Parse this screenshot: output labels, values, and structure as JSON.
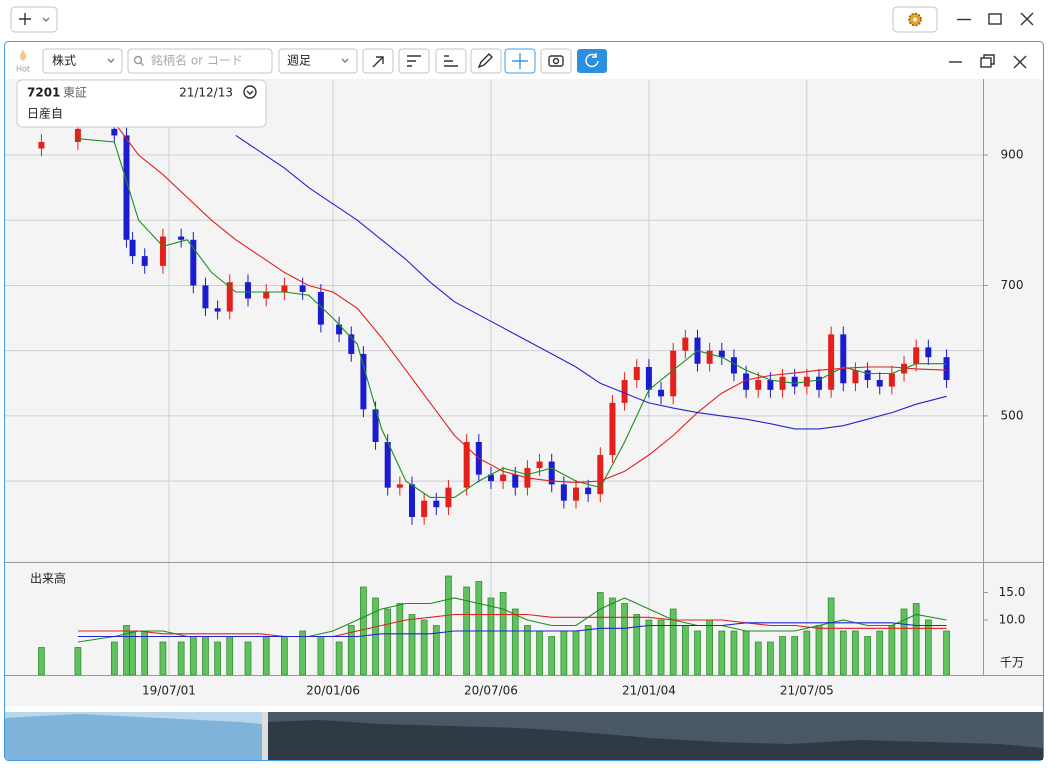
{
  "toolbar": {
    "hot": "Hot",
    "market_type": "株式",
    "search_placeholder": "銘柄名 or コード",
    "period": "週足"
  },
  "info": {
    "code": "7201",
    "exchange": "東証",
    "date": "21/12/13",
    "name": "日産自"
  },
  "chart_data": [
    {
      "type": "candlestick",
      "x": [
        "19/02/04",
        "19/03/18",
        "19/04/29",
        "19/05/13",
        "19/05/20",
        "19/06/03",
        "19/06/24",
        "19/07/15",
        "19/07/29",
        "19/08/12",
        "19/08/26",
        "19/09/09",
        "19/09/30",
        "19/10/21",
        "19/11/11",
        "19/12/02",
        "19/12/23",
        "20/01/13",
        "20/01/27",
        "20/02/10",
        "20/02/24",
        "20/03/09",
        "20/03/23",
        "20/04/06",
        "20/04/20",
        "20/05/04",
        "20/05/18",
        "20/06/08",
        "20/06/22",
        "20/07/06",
        "20/07/20",
        "20/08/03",
        "20/08/17",
        "20/08/31",
        "20/09/14",
        "20/09/28",
        "20/10/12",
        "20/10/26",
        "20/11/09",
        "20/11/23",
        "20/12/07",
        "20/12/21",
        "21/01/04",
        "21/01/18",
        "21/02/01",
        "21/02/15",
        "21/03/01",
        "21/03/15",
        "21/03/29",
        "21/04/12",
        "21/04/26",
        "21/05/10",
        "21/05/24",
        "21/06/07",
        "21/06/21",
        "21/07/05",
        "21/07/19",
        "21/08/02",
        "21/08/16",
        "21/08/30",
        "21/09/13",
        "21/09/27",
        "21/10/11",
        "21/10/25",
        "21/11/08",
        "21/11/22",
        "21/12/13"
      ],
      "open": [
        910,
        920,
        940,
        930,
        770,
        745,
        730,
        775,
        770,
        700,
        665,
        660,
        705,
        680,
        690,
        700,
        690,
        640,
        625,
        595,
        510,
        460,
        390,
        395,
        345,
        370,
        360,
        390,
        460,
        410,
        400,
        410,
        390,
        420,
        430,
        395,
        370,
        390,
        380,
        440,
        520,
        555,
        575,
        540,
        530,
        600,
        620,
        580,
        600,
        590,
        565,
        540,
        555,
        540,
        560,
        545,
        560,
        540,
        625,
        550,
        570,
        555,
        545,
        565,
        580,
        605,
        590
      ],
      "high": [
        932,
        952,
        952,
        942,
        782,
        757,
        787,
        787,
        782,
        712,
        677,
        717,
        717,
        702,
        712,
        712,
        702,
        652,
        637,
        607,
        522,
        472,
        407,
        407,
        382,
        382,
        402,
        472,
        472,
        422,
        422,
        422,
        432,
        442,
        442,
        407,
        402,
        402,
        452,
        532,
        567,
        587,
        587,
        552,
        612,
        632,
        632,
        612,
        612,
        602,
        577,
        567,
        567,
        572,
        572,
        572,
        572,
        637,
        637,
        582,
        582,
        567,
        577,
        592,
        617,
        617,
        602
      ],
      "low": [
        898,
        908,
        918,
        758,
        733,
        718,
        718,
        758,
        688,
        653,
        648,
        648,
        668,
        668,
        678,
        678,
        628,
        613,
        583,
        498,
        448,
        378,
        378,
        333,
        333,
        348,
        348,
        378,
        398,
        388,
        388,
        378,
        378,
        408,
        383,
        358,
        358,
        368,
        368,
        428,
        508,
        543,
        528,
        518,
        518,
        588,
        568,
        568,
        578,
        553,
        528,
        528,
        528,
        528,
        533,
        533,
        528,
        528,
        538,
        538,
        543,
        533,
        533,
        553,
        568,
        578,
        543
      ],
      "close": [
        920,
        940,
        930,
        770,
        745,
        730,
        775,
        770,
        700,
        665,
        660,
        705,
        680,
        690,
        700,
        690,
        640,
        625,
        595,
        510,
        460,
        390,
        395,
        345,
        370,
        360,
        390,
        460,
        410,
        400,
        410,
        390,
        420,
        430,
        395,
        370,
        390,
        380,
        440,
        520,
        555,
        575,
        540,
        530,
        600,
        620,
        580,
        600,
        590,
        565,
        540,
        555,
        540,
        560,
        545,
        560,
        540,
        625,
        550,
        570,
        555,
        545,
        565,
        580,
        605,
        590,
        555
      ],
      "up_color": "#e3201c",
      "down_color": "#1b1bd0",
      "ma_x": [
        "19/03/18",
        "19/04/29",
        "19/05/27",
        "19/06/24",
        "19/07/22",
        "19/08/19",
        "19/09/16",
        "19/10/14",
        "19/11/11",
        "19/12/09",
        "20/01/06",
        "20/02/03",
        "20/03/02",
        "20/03/30",
        "20/04/27",
        "20/05/25",
        "20/06/22",
        "20/07/20",
        "20/08/17",
        "20/09/14",
        "20/10/12",
        "20/11/09",
        "20/12/07",
        "21/01/04",
        "21/02/01",
        "21/03/01",
        "21/03/29",
        "21/04/26",
        "21/05/24",
        "21/06/21",
        "21/07/19",
        "21/08/16",
        "21/09/13",
        "21/10/11",
        "21/11/08",
        "21/12/13"
      ],
      "ma_series": [
        {
          "color": "#1c8f1c",
          "values": [
            925,
            920,
            800,
            760,
            770,
            720,
            690,
            690,
            690,
            685,
            650,
            610,
            480,
            400,
            375,
            375,
            400,
            420,
            410,
            420,
            400,
            390,
            460,
            540,
            570,
            600,
            590,
            570,
            555,
            550,
            555,
            575,
            565,
            565,
            580,
            580
          ]
        },
        {
          "color": "#e02020",
          "values": [
            null,
            950,
            900,
            870,
            835,
            800,
            770,
            745,
            720,
            700,
            690,
            665,
            620,
            570,
            520,
            470,
            435,
            415,
            405,
            400,
            398,
            400,
            415,
            440,
            470,
            505,
            535,
            555,
            562,
            566,
            570,
            573,
            575,
            575,
            572,
            570
          ]
        },
        {
          "color": "#2424d0",
          "values": [
            null,
            null,
            null,
            null,
            null,
            null,
            930,
            905,
            880,
            850,
            825,
            800,
            770,
            740,
            705,
            675,
            655,
            635,
            615,
            595,
            575,
            550,
            535,
            520,
            512,
            505,
            500,
            495,
            488,
            480,
            480,
            485,
            495,
            505,
            518,
            530
          ]
        }
      ],
      "xlim": [
        "18/12/24",
        "22/01/24"
      ],
      "xticks": [
        "19/07/01",
        "20/01/06",
        "20/07/06",
        "21/01/04",
        "21/07/05"
      ],
      "ylim": [
        276,
        1015
      ],
      "yticks": [
        500,
        700,
        900
      ],
      "ygrid": [
        400,
        500,
        600,
        700,
        800,
        900
      ],
      "grid": true
    },
    {
      "type": "bar",
      "title": "出来高",
      "unit": "千万",
      "x": [
        "19/02/04",
        "19/03/18",
        "19/04/29",
        "19/05/13",
        "19/05/20",
        "19/06/03",
        "19/06/24",
        "19/07/15",
        "19/07/29",
        "19/08/12",
        "19/08/26",
        "19/09/09",
        "19/09/30",
        "19/10/21",
        "19/11/11",
        "19/12/02",
        "19/12/23",
        "20/01/13",
        "20/01/27",
        "20/02/10",
        "20/02/24",
        "20/03/09",
        "20/03/23",
        "20/04/06",
        "20/04/20",
        "20/05/04",
        "20/05/18",
        "20/06/08",
        "20/06/22",
        "20/07/06",
        "20/07/20",
        "20/08/03",
        "20/08/17",
        "20/08/31",
        "20/09/14",
        "20/09/28",
        "20/10/12",
        "20/10/26",
        "20/11/09",
        "20/11/23",
        "20/12/07",
        "20/12/21",
        "21/01/04",
        "21/01/18",
        "21/02/01",
        "21/02/15",
        "21/03/01",
        "21/03/15",
        "21/03/29",
        "21/04/12",
        "21/04/26",
        "21/05/10",
        "21/05/24",
        "21/06/07",
        "21/06/21",
        "21/07/05",
        "21/07/19",
        "21/08/02",
        "21/08/16",
        "21/08/30",
        "21/09/13",
        "21/09/27",
        "21/10/11",
        "21/10/25",
        "21/11/08",
        "21/11/22",
        "21/12/13"
      ],
      "values": [
        5,
        5,
        6,
        9,
        8,
        8,
        6,
        6,
        7,
        7,
        6,
        7,
        6,
        7,
        7,
        8,
        7,
        6,
        9,
        16,
        14,
        12,
        13,
        11,
        10,
        9,
        18,
        16,
        17,
        14,
        15,
        12,
        9,
        8,
        7,
        8,
        8,
        9,
        15,
        14,
        13,
        11,
        10,
        10,
        12,
        9,
        8,
        10,
        8,
        8,
        8,
        6,
        6,
        7,
        7,
        8,
        9,
        14,
        8,
        8,
        7,
        8,
        9,
        12,
        13,
        10,
        8
      ],
      "color": "#5fc25f",
      "edge_color": "#2a852a",
      "ma_x": [
        "19/03/18",
        "19/04/29",
        "19/05/27",
        "19/06/24",
        "19/07/22",
        "19/08/19",
        "19/09/16",
        "19/10/14",
        "19/11/11",
        "19/12/09",
        "20/01/06",
        "20/02/03",
        "20/03/02",
        "20/03/30",
        "20/04/27",
        "20/05/25",
        "20/06/22",
        "20/07/20",
        "20/08/17",
        "20/09/14",
        "20/10/12",
        "20/11/09",
        "20/12/07",
        "21/01/04",
        "21/02/01",
        "21/03/01",
        "21/03/29",
        "21/04/26",
        "21/05/24",
        "21/06/21",
        "21/07/19",
        "21/08/16",
        "21/09/13",
        "21/10/11",
        "21/11/08",
        "21/12/13"
      ],
      "ma_series": [
        {
          "color": "#1c8f1c",
          "values": [
            6,
            7,
            8,
            8,
            7,
            7,
            7,
            7,
            7,
            7,
            8,
            10,
            12,
            13,
            13,
            14,
            13,
            12,
            10,
            9,
            9,
            12,
            14,
            12,
            10,
            9,
            9,
            8,
            8,
            8,
            9,
            10,
            9,
            9,
            11,
            10
          ]
        },
        {
          "color": "#e02020",
          "values": [
            8,
            8,
            8,
            7.5,
            7.5,
            7.5,
            7.5,
            7.5,
            7,
            7,
            7,
            8,
            9,
            10,
            10.5,
            11,
            11,
            11,
            11,
            10.5,
            10.5,
            10.5,
            10.5,
            10.5,
            10,
            10,
            10,
            9.5,
            9,
            9,
            8.5,
            8.5,
            8.5,
            8.5,
            8.5,
            8.5
          ]
        },
        {
          "color": "#2424d0",
          "values": [
            7,
            7,
            7,
            7,
            7,
            7,
            7,
            7,
            7,
            7,
            7,
            7,
            7.5,
            7.5,
            7.5,
            8,
            8,
            8,
            8,
            8,
            8,
            8.5,
            8.5,
            9,
            9,
            9,
            9,
            9.5,
            9.5,
            9.5,
            9.5,
            9.5,
            9.5,
            9.5,
            9,
            9
          ]
        }
      ],
      "ylim": [
        0,
        20
      ],
      "yticks": [
        {
          "value": 10,
          "label": "10.0"
        },
        {
          "value": 15,
          "label": "15.0"
        }
      ]
    }
  ]
}
